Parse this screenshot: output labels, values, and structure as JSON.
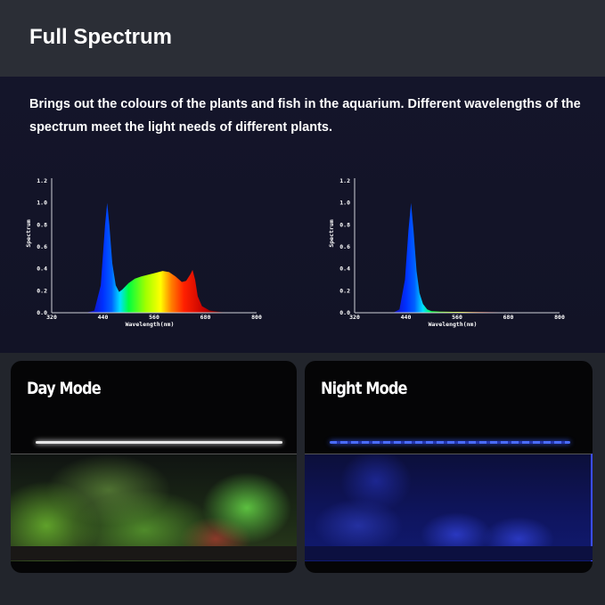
{
  "header": {
    "title": "Full Spectrum"
  },
  "description": "Brings out the colours of the plants and fish in the aquarium.  Different wavelengths of the spectrum meet the light needs of different plants.",
  "chart_data": [
    {
      "type": "area",
      "xlabel": "Wavelength(nm)",
      "ylabel": "Spectrum",
      "xlim": [
        320,
        800
      ],
      "ylim": [
        0,
        1.2
      ],
      "xticks": [
        "320",
        "440",
        "560",
        "680",
        "800"
      ],
      "yticks": [
        "0.0",
        "0.2",
        "0.4",
        "0.6",
        "0.8",
        "1.0",
        "1.2"
      ],
      "grid": false,
      "fill": "wavelength-colored spectrum gradient",
      "x": [
        400,
        420,
        435,
        445,
        450,
        455,
        462,
        470,
        478,
        485,
        500,
        515,
        530,
        560,
        580,
        595,
        610,
        625,
        635,
        645,
        650,
        656,
        662,
        672,
        690,
        720,
        760
      ],
      "y": [
        0,
        0.02,
        0.25,
        0.8,
        1.0,
        0.8,
        0.45,
        0.25,
        0.19,
        0.21,
        0.27,
        0.31,
        0.33,
        0.36,
        0.38,
        0.37,
        0.33,
        0.28,
        0.29,
        0.35,
        0.39,
        0.3,
        0.15,
        0.06,
        0.02,
        0.005,
        0
      ]
    },
    {
      "type": "area",
      "xlabel": "Wavelength(nm)",
      "ylabel": "Spectrum",
      "xlim": [
        320,
        800
      ],
      "ylim": [
        0,
        1.2
      ],
      "xticks": [
        "320",
        "440",
        "560",
        "680",
        "800"
      ],
      "yticks": [
        "0.0",
        "0.2",
        "0.4",
        "0.6",
        "0.8",
        "1.0",
        "1.2"
      ],
      "grid": false,
      "fill": "wavelength-colored spectrum gradient",
      "x": [
        410,
        425,
        438,
        446,
        452,
        458,
        465,
        472,
        480,
        490,
        500,
        520,
        560,
        620,
        660,
        690
      ],
      "y": [
        0,
        0.03,
        0.3,
        0.75,
        1.0,
        0.75,
        0.38,
        0.18,
        0.08,
        0.03,
        0.015,
        0.01,
        0.008,
        0.006,
        0.004,
        0
      ]
    }
  ],
  "panels": [
    {
      "label": "Day Mode",
      "light_color": "#e8e8e8"
    },
    {
      "label": "Night Mode",
      "light_color": "#3a5cff"
    }
  ],
  "colors": {
    "header_bg": "#2b2e36",
    "main_bg": "#121326",
    "bottom_bg": "#22252c"
  }
}
